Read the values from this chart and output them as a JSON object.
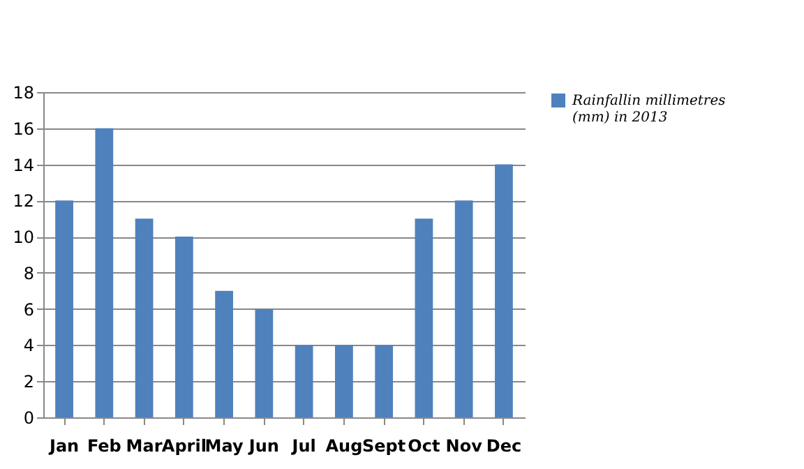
{
  "chart_data": {
    "type": "bar",
    "categories": [
      "Jan",
      "Feb",
      "Mar",
      "April",
      "May",
      "Jun",
      "Jul",
      "Aug",
      "Sept",
      "Oct",
      "Nov",
      "Dec"
    ],
    "series": [
      {
        "name": "Rainfallin millimetres (mm) in 2013",
        "color": "#4f81bd",
        "values": [
          12,
          16,
          11,
          10,
          7,
          6,
          4,
          4,
          4,
          11,
          12,
          14
        ]
      }
    ],
    "ylim": [
      0,
      18
    ],
    "yticks": [
      0,
      2,
      4,
      6,
      8,
      10,
      12,
      14,
      16,
      18
    ],
    "grid": "y",
    "legend": "right"
  }
}
